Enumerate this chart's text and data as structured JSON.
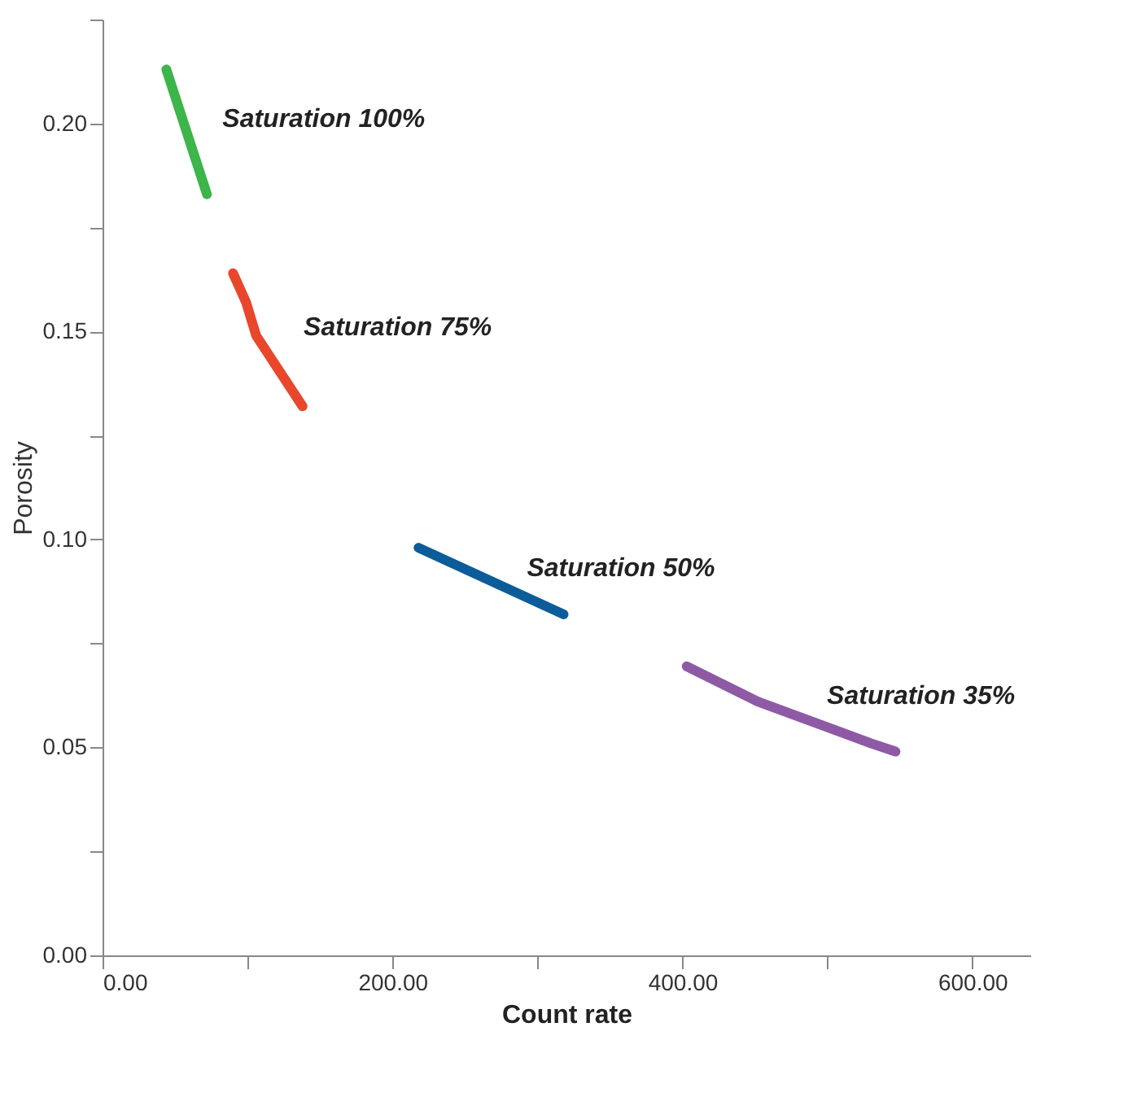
{
  "chart_data": {
    "type": "line",
    "xlabel": "Count rate",
    "ylabel": "Porosity",
    "xlim": [
      0,
      640
    ],
    "ylim": [
      0,
      0.225
    ],
    "xticks": [
      {
        "value": 0,
        "label": "0.00"
      },
      {
        "value": 100,
        "label": null
      },
      {
        "value": 200,
        "label": "200.00"
      },
      {
        "value": 300,
        "label": null
      },
      {
        "value": 400,
        "label": "400.00"
      },
      {
        "value": 500,
        "label": null
      },
      {
        "value": 600,
        "label": "600.00"
      }
    ],
    "yticks": [
      {
        "value": 0,
        "label": "0.00"
      },
      {
        "value": 0.025,
        "label": null
      },
      {
        "value": 0.05,
        "label": "0.05"
      },
      {
        "value": 0.075,
        "label": null
      },
      {
        "value": 0.1,
        "label": "0.10"
      },
      {
        "value": 0.125,
        "label": null
      },
      {
        "value": 0.15,
        "label": "0.15"
      },
      {
        "value": 0.175,
        "label": null
      },
      {
        "value": 0.2,
        "label": "0.20"
      },
      {
        "value": 0.225,
        "label": null
      }
    ],
    "grid": false,
    "marker": "none",
    "line_style": "solid",
    "series": [
      {
        "color": "#3cb54a",
        "x": [
          44,
          72
        ],
        "values": [
          0.213,
          0.183
        ]
      },
      {
        "color": "#e8472b",
        "x": [
          90,
          99,
          106,
          121,
          138
        ],
        "values": [
          0.164,
          0.157,
          0.149,
          0.141,
          0.132
        ]
      },
      {
        "color": "#0d5c9a",
        "x": [
          218,
          318
        ],
        "values": [
          0.098,
          0.082
        ]
      },
      {
        "color": "#8e5aa6",
        "x": [
          403,
          452,
          530,
          547
        ],
        "values": [
          0.0695,
          0.061,
          0.051,
          0.049
        ]
      }
    ],
    "annotations": [
      "Saturation 100%",
      "Saturation 75%",
      "Saturation 50%",
      "Saturation 35%"
    ]
  }
}
